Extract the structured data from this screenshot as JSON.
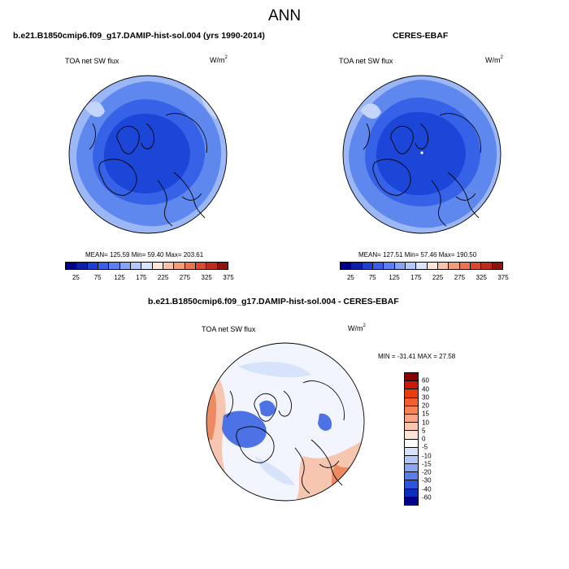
{
  "page": {
    "title": "ANN"
  },
  "panels": [
    {
      "case_title": "b.e21.B1850cmip6.f09_g17.DAMIP-hist-sol.004 (yrs 1990-2014)",
      "variable": "TOA net SW flux",
      "units": "W/m",
      "units_sup": "2",
      "stats": "MEAN= 125.59  Min=  59.40  Max= 203.61"
    },
    {
      "case_title": "CERES-EBAF",
      "variable": "TOA net SW flux",
      "units": "W/m",
      "units_sup": "2",
      "stats": "MEAN= 127.51  Min=  57.46  Max= 190.50"
    }
  ],
  "diff_panel": {
    "case_title": "b.e21.B1850cmip6.f09_g17.DAMIP-hist-sol.004 - CERES-EBAF",
    "variable": "TOA net SW flux",
    "units": "W/m",
    "units_sup": "2",
    "stats": "MIN = -31.41  MAX =  27.58"
  },
  "colorbar_main": {
    "colors": [
      "#00008b",
      "#0d1fa8",
      "#1e40d0",
      "#3a5ee8",
      "#5b7ff0",
      "#86a4f5",
      "#b3c8fa",
      "#dae5fc",
      "#fbe5d9",
      "#f6c3a6",
      "#f09e79",
      "#e8734f",
      "#d8492f",
      "#bb2c1b",
      "#8f1410"
    ],
    "labels": [
      "25",
      "75",
      "125",
      "175",
      "225",
      "275",
      "325",
      "375"
    ]
  },
  "colorbar_diff": {
    "colors": [
      "#8b0000",
      "#c81a05",
      "#e93d0f",
      "#f25f2f",
      "#f5835a",
      "#f7a585",
      "#f9c5ae",
      "#fce3d6",
      "#ffffff",
      "#d7e3fb",
      "#b3c8fa",
      "#8aa6f2",
      "#5a7ee9",
      "#2d55dc",
      "#0f2dc0",
      "#00008b"
    ],
    "labels": [
      "60",
      "40",
      "30",
      "20",
      "15",
      "10",
      "5",
      "0",
      "-5",
      "-10",
      "-15",
      "-20",
      "-30",
      "-40",
      "-60"
    ]
  },
  "map_colors": {
    "deep": "#1c46d8",
    "mid": "#3562e6",
    "light": "#5f88ef",
    "pale": "#9bb7f6",
    "paler": "#c4d5fa",
    "diff_white": "#f2f5fd",
    "diff_pale_blue": "#d7e3fb",
    "diff_pale_red": "#f7c6b0",
    "diff_red": "#ee8a62",
    "diff_blue": "#4d72e6"
  }
}
